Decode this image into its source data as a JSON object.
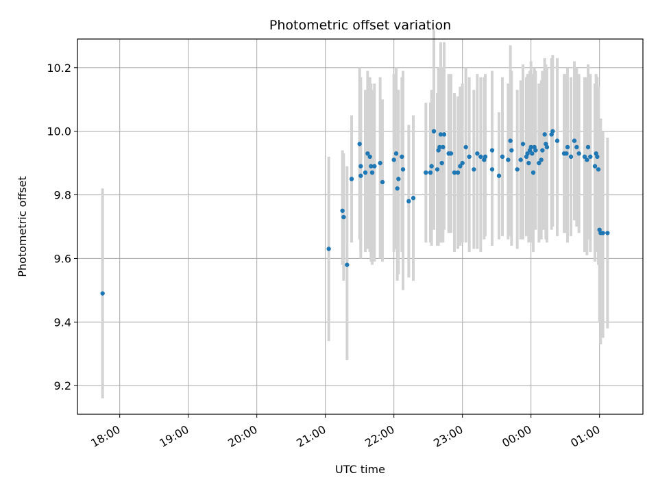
{
  "chart_data": {
    "type": "scatter",
    "title": "Photometric offset variation",
    "xlabel": "UTC time",
    "ylabel": "Photometric offset",
    "x_axis_kind": "time",
    "xlim": [
      "2000-01-01T17:23:00",
      "2000-01-02T01:38:00"
    ],
    "ylim": [
      9.11,
      10.29
    ],
    "x_tick_values": [
      "2000-01-01T18:00:00",
      "2000-01-01T19:00:00",
      "2000-01-01T20:00:00",
      "2000-01-01T21:00:00",
      "2000-01-01T22:00:00",
      "2000-01-01T23:00:00",
      "2000-01-02T00:00:00",
      "2000-01-02T01:00:00"
    ],
    "x_tick_labels": [
      "18:00",
      "19:00",
      "20:00",
      "21:00",
      "22:00",
      "23:00",
      "00:00",
      "01:00"
    ],
    "y_ticks": [
      9.2,
      9.4,
      9.6,
      9.8,
      10.0,
      10.2
    ],
    "y_tick_labels": [
      "9.2",
      "9.4",
      "9.6",
      "9.8",
      "10.0",
      "10.2"
    ],
    "grid": true,
    "legend": "none",
    "colors": {
      "point": "#1f77b4",
      "errorbar": "#d3d3d3",
      "grid": "#b0b0b0"
    },
    "series": [
      {
        "x": [
          "17:45",
          "21:03",
          "21:15",
          "21:16",
          "21:19",
          "21:23",
          "21:30",
          "21:31",
          "21:31",
          "21:35",
          "21:37",
          "21:39",
          "21:40",
          "21:41",
          "21:43",
          "21:48",
          "21:50",
          "22:00",
          "22:02",
          "22:03",
          "22:04",
          "22:07",
          "22:08",
          "22:13",
          "22:17",
          "22:28",
          "22:32",
          "22:33",
          "22:35",
          "22:38",
          "22:39",
          "22:40",
          "22:41",
          "22:42",
          "22:43",
          "22:44",
          "22:48",
          "22:50",
          "22:53",
          "22:56",
          "22:58",
          "23:00",
          "23:03",
          "23:06",
          "23:10",
          "23:13",
          "23:16",
          "23:19",
          "23:20",
          "23:26",
          "23:26",
          "23:32",
          "23:35",
          "23:40",
          "23:42",
          "23:43",
          "23:48",
          "23:51",
          "23:53",
          "23:56",
          "23:57",
          "23:58",
          "23:59",
          "00:00",
          "00:01",
          "00:02",
          "00:03",
          "00:04",
          "00:07",
          "00:09",
          "00:10",
          "00:12",
          "00:13",
          "00:14",
          "00:18",
          "00:19",
          "00:23",
          "00:29",
          "00:31",
          "00:32",
          "00:35",
          "00:38",
          "00:40",
          "00:42",
          "00:47",
          "00:49",
          "00:50",
          "00:52",
          "00:56",
          "00:57",
          "00:58",
          "00:59",
          "01:00",
          "01:01",
          "01:03",
          "01:07"
        ],
        "y": [
          9.49,
          9.63,
          9.75,
          9.73,
          9.58,
          9.85,
          9.96,
          9.89,
          9.86,
          9.87,
          9.93,
          9.92,
          9.89,
          9.87,
          9.89,
          9.9,
          9.84,
          9.91,
          9.93,
          9.82,
          9.85,
          9.92,
          9.88,
          9.78,
          9.79,
          9.87,
          9.87,
          9.89,
          10.0,
          9.88,
          9.94,
          9.95,
          9.99,
          9.9,
          9.95,
          9.99,
          9.93,
          9.93,
          9.87,
          9.87,
          9.89,
          9.9,
          9.95,
          9.92,
          9.88,
          9.93,
          9.92,
          9.91,
          9.92,
          9.88,
          9.94,
          9.86,
          9.92,
          9.91,
          9.97,
          9.94,
          9.88,
          9.91,
          9.96,
          9.92,
          9.93,
          9.9,
          9.94,
          9.95,
          9.93,
          9.87,
          9.95,
          9.94,
          9.9,
          9.91,
          9.94,
          9.99,
          9.96,
          9.95,
          9.99,
          10.0,
          9.97,
          9.93,
          9.93,
          9.95,
          9.92,
          9.97,
          9.95,
          9.93,
          9.92,
          9.91,
          9.95,
          9.92,
          9.89,
          9.93,
          9.92,
          9.88,
          9.69,
          9.68,
          9.68,
          9.68
        ],
        "yerr_low": [
          9.16,
          9.34,
          9.58,
          9.53,
          9.28,
          9.65,
          9.66,
          9.63,
          9.6,
          9.62,
          9.63,
          9.62,
          9.59,
          9.58,
          9.59,
          9.6,
          9.59,
          9.62,
          9.63,
          9.53,
          9.55,
          9.62,
          9.5,
          9.54,
          9.53,
          9.65,
          9.65,
          9.64,
          9.69,
          9.64,
          9.64,
          9.65,
          9.7,
          9.65,
          9.65,
          9.69,
          9.68,
          9.68,
          9.62,
          9.63,
          9.64,
          9.65,
          9.65,
          9.62,
          9.63,
          9.63,
          9.62,
          9.66,
          9.67,
          9.64,
          9.64,
          9.66,
          9.67,
          9.66,
          9.67,
          9.64,
          9.63,
          9.66,
          9.66,
          9.67,
          9.68,
          9.65,
          9.69,
          9.65,
          9.68,
          9.62,
          9.7,
          9.69,
          9.65,
          9.66,
          9.69,
          9.69,
          9.66,
          9.65,
          9.69,
          9.7,
          9.67,
          9.68,
          9.68,
          9.65,
          9.67,
          9.72,
          9.7,
          9.68,
          9.62,
          9.61,
          9.66,
          9.62,
          9.59,
          9.63,
          9.62,
          9.58,
          9.4,
          9.33,
          9.35,
          9.38
        ],
        "yerr_high": [
          9.82,
          9.92,
          9.94,
          9.93,
          9.89,
          10.05,
          10.2,
          10.17,
          10.14,
          10.13,
          10.19,
          10.17,
          10.15,
          10.13,
          10.15,
          10.17,
          10.1,
          10.18,
          10.2,
          10.1,
          10.13,
          10.17,
          10.19,
          10.02,
          10.05,
          10.09,
          10.09,
          10.13,
          10.32,
          10.12,
          10.2,
          10.2,
          10.28,
          10.13,
          10.2,
          10.28,
          10.18,
          10.18,
          10.12,
          10.11,
          10.14,
          10.15,
          10.2,
          10.17,
          10.13,
          10.18,
          10.17,
          10.17,
          10.18,
          10.12,
          10.19,
          10.06,
          10.17,
          10.15,
          10.27,
          10.19,
          10.13,
          10.16,
          10.21,
          10.17,
          10.18,
          10.15,
          10.19,
          10.22,
          10.18,
          10.12,
          10.2,
          10.19,
          10.15,
          10.16,
          10.19,
          10.23,
          10.21,
          10.2,
          10.23,
          10.24,
          10.23,
          10.18,
          10.18,
          10.2,
          10.17,
          10.22,
          10.2,
          10.18,
          10.17,
          10.17,
          10.21,
          10.18,
          10.15,
          10.18,
          10.17,
          10.14,
          9.96,
          10.04,
          10.0,
          9.98
        ]
      }
    ]
  }
}
